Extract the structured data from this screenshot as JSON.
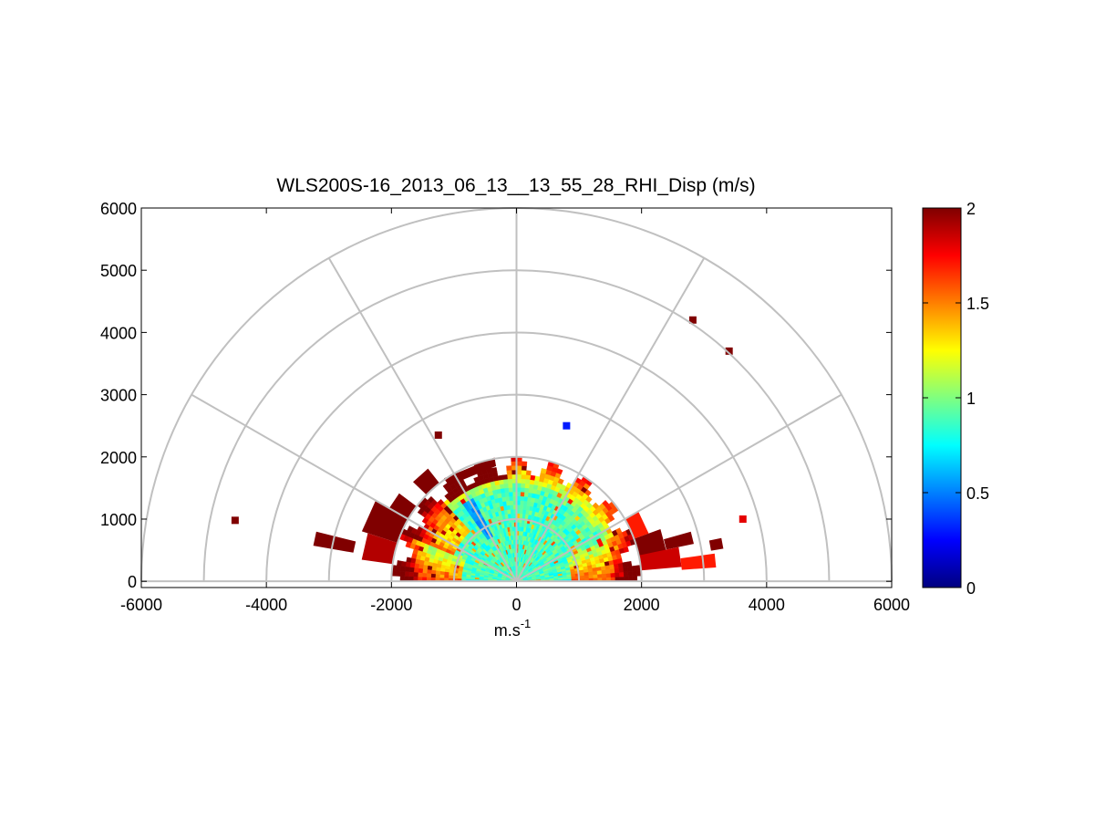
{
  "chart_data": {
    "type": "heatmap",
    "subtype": "polar-rhi",
    "title": "WLS200S-16_2013_06_13__13_55_28_RHI_Disp (m/s)",
    "xlabel_base": "m.s",
    "xlabel_exp": "-1",
    "ylabel": "",
    "xlim": [
      -6000,
      6000
    ],
    "ylim": [
      -100,
      6000
    ],
    "x_ticks": [
      -6000,
      -4000,
      -2000,
      0,
      2000,
      4000,
      6000
    ],
    "y_ticks": [
      0,
      1000,
      2000,
      3000,
      4000,
      5000,
      6000
    ],
    "x_tick_labels": [
      "-6000",
      "-4000",
      "-2000",
      "0",
      "2000",
      "4000",
      "6000"
    ],
    "y_tick_labels": [
      "0",
      "1000",
      "2000",
      "3000",
      "4000",
      "5000",
      "6000"
    ],
    "polar_grid": {
      "ring_ranges": [
        1000,
        2000,
        3000,
        4000,
        5000,
        6000
      ],
      "spoke_angles_deg": [
        0,
        30,
        60,
        90,
        120,
        150,
        180
      ]
    },
    "colorbar": {
      "colormap": "jet",
      "range": [
        0,
        2
      ],
      "ticks": [
        0,
        0.5,
        1,
        1.5,
        2
      ],
      "tick_labels": [
        "0",
        "0.5",
        "1",
        "1.5",
        "2"
      ]
    },
    "data_extent": {
      "main_max_range_m": 2000,
      "elevation_range_deg": [
        0,
        180
      ],
      "value_range": [
        0,
        2
      ]
    },
    "isolated_points": [
      {
        "x": 2820,
        "y": 4200,
        "value": 2.0
      },
      {
        "x": 3400,
        "y": 3700,
        "value": 2.0
      },
      {
        "x": -4500,
        "y": 980,
        "value": 2.0
      },
      {
        "x": 3620,
        "y": 1000,
        "value": 1.8
      },
      {
        "x": -1250,
        "y": 2350,
        "value": 2.0
      },
      {
        "x": 800,
        "y": 2500,
        "value": 0.3
      }
    ]
  },
  "colors": {
    "grid": "#c0c0c0",
    "axes": "#000000",
    "background": "#ffffff"
  }
}
